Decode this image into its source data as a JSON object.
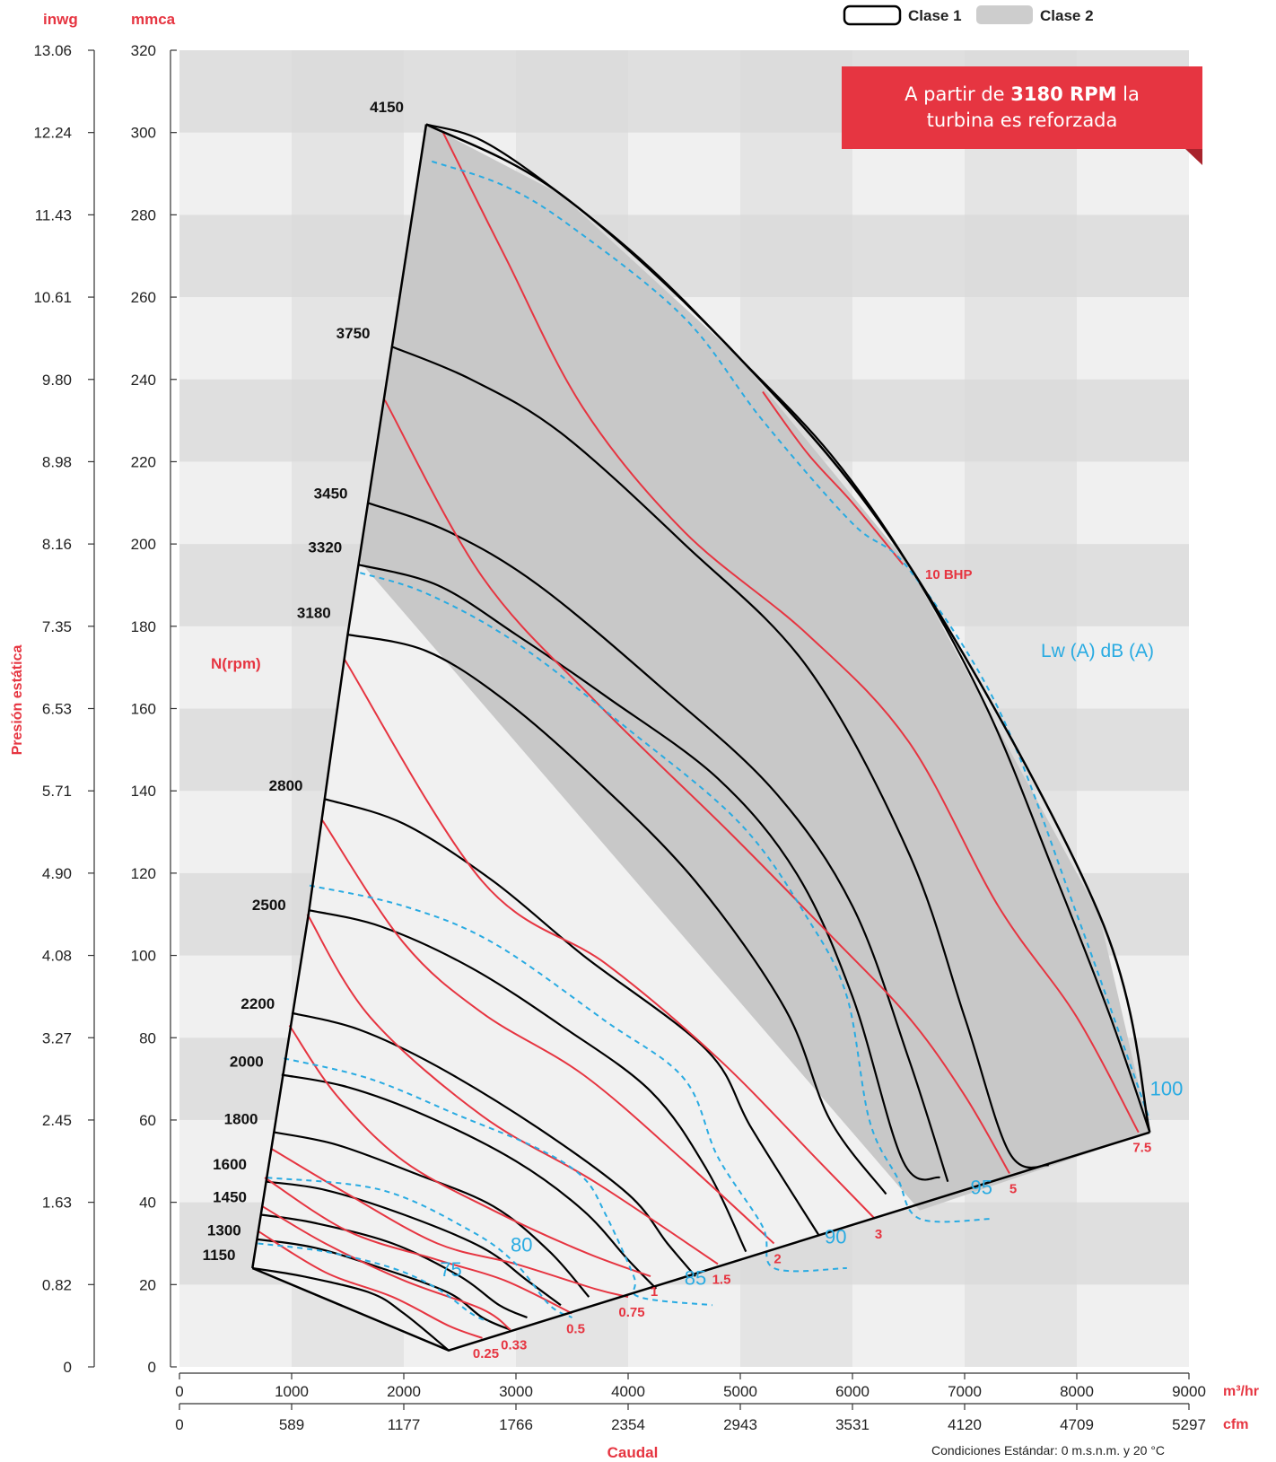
{
  "units": {
    "inwg": "inwg",
    "mmca": "mmca",
    "m3hr": "m³/hr",
    "cfm": "cfm"
  },
  "legend": {
    "clase1": "Clase 1",
    "clase2": "Clase 2"
  },
  "banner": {
    "pre": "A partir de ",
    "bold": "3180 RPM",
    "post": " la turbina es reforzada"
  },
  "labels": {
    "n_rpm": "N(rpm)",
    "lw": "Lw (A) dB (A)",
    "ten_bhp": "10 BHP",
    "ylabel": "Presión estática",
    "xlabel": "Caudal",
    "conditions": "Condiciones Estándar: 0 m.s.n.m. y 20 °C"
  },
  "colors": {
    "red": "#e63541",
    "blue": "#29abe2",
    "black": "#000000",
    "band_dark": "#dadada",
    "band_light": "#e9e9e9",
    "col_light": "#f0f0f0",
    "col_dark": "#e4e4e4",
    "clase2_fill": "#c8c8c8",
    "clase1_fill": "#f1f1f1"
  },
  "chart_data": {
    "type": "line",
    "xlim": [
      0,
      9000
    ],
    "ylim": [
      0,
      320
    ],
    "x_ticks_m3hr": [
      "0",
      "1000",
      "2000",
      "3000",
      "4000",
      "5000",
      "6000",
      "7000",
      "8000",
      "9000"
    ],
    "x_ticks_cfm": [
      "0",
      "589",
      "1177",
      "1766",
      "2354",
      "2943",
      "3531",
      "4120",
      "4709",
      "5297"
    ],
    "y_ticks_mmca": [
      "0",
      "20",
      "40",
      "60",
      "80",
      "100",
      "120",
      "140",
      "160",
      "180",
      "200",
      "220",
      "240",
      "260",
      "280",
      "300",
      "320"
    ],
    "y_ticks_inwg": [
      "0",
      "0.82",
      "1.63",
      "2.45",
      "3.27",
      "4.08",
      "4.90",
      "5.71",
      "6.53",
      "7.35",
      "8.16",
      "8.98",
      "9.80",
      "10.61",
      "11.43",
      "12.24",
      "13.06"
    ],
    "envelope": [
      [
        2200,
        302
      ],
      [
        1500,
        178
      ],
      [
        1150,
        110
      ],
      [
        650,
        24
      ],
      [
        2400,
        4
      ],
      [
        8650,
        57
      ],
      [
        8200,
        110
      ],
      [
        6500,
        195
      ],
      [
        5000,
        245
      ],
      [
        3400,
        285
      ]
    ],
    "clase2_region": [
      [
        2200,
        302
      ],
      [
        1600,
        196
      ],
      [
        6600,
        38
      ],
      [
        8650,
        57
      ],
      [
        8200,
        110
      ],
      [
        6500,
        195
      ],
      [
        5000,
        245
      ],
      [
        3400,
        285
      ]
    ],
    "rpm_curves": [
      {
        "name": "4150",
        "points": [
          [
            2200,
            302
          ],
          [
            2700,
            298
          ],
          [
            3400,
            285
          ],
          [
            4200,
            267
          ],
          [
            5000,
            245
          ],
          [
            5800,
            222
          ],
          [
            6500,
            195
          ],
          [
            7200,
            160
          ],
          [
            7800,
            120
          ],
          [
            8300,
            85
          ],
          [
            8650,
            57
          ]
        ]
      },
      {
        "name": "3750",
        "points": [
          [
            1890,
            248
          ],
          [
            2600,
            240
          ],
          [
            3400,
            227
          ],
          [
            4500,
            200
          ],
          [
            5600,
            170
          ],
          [
            6500,
            125
          ],
          [
            7000,
            85
          ],
          [
            7400,
            52
          ],
          [
            7750,
            49
          ]
        ]
      },
      {
        "name": "3450",
        "points": [
          [
            1680,
            210
          ],
          [
            2400,
            203
          ],
          [
            3200,
            190
          ],
          [
            4300,
            165
          ],
          [
            5300,
            140
          ],
          [
            6000,
            112
          ],
          [
            6500,
            75
          ],
          [
            6850,
            45
          ]
        ]
      },
      {
        "name": "3320",
        "points": [
          [
            1590,
            195
          ],
          [
            2300,
            190
          ],
          [
            3000,
            178
          ],
          [
            3800,
            163
          ],
          [
            4800,
            143
          ],
          [
            5500,
            120
          ],
          [
            6000,
            90
          ],
          [
            6450,
            50
          ],
          [
            6780,
            46
          ]
        ]
      },
      {
        "name": "3180",
        "points": [
          [
            1500,
            178
          ],
          [
            2200,
            174
          ],
          [
            2900,
            162
          ],
          [
            3700,
            143
          ],
          [
            4600,
            118
          ],
          [
            5400,
            87
          ],
          [
            5800,
            60
          ],
          [
            6300,
            42
          ]
        ]
      },
      {
        "name": "2800",
        "points": [
          [
            1300,
            138
          ],
          [
            2000,
            132
          ],
          [
            2800,
            118
          ],
          [
            3600,
            100
          ],
          [
            4700,
            77
          ],
          [
            5100,
            58
          ],
          [
            5700,
            32
          ]
        ]
      },
      {
        "name": "2500",
        "points": [
          [
            1150,
            111
          ],
          [
            1800,
            107
          ],
          [
            2600,
            97
          ],
          [
            3400,
            83
          ],
          [
            4200,
            67
          ],
          [
            4700,
            48
          ],
          [
            5050,
            28
          ]
        ]
      },
      {
        "name": "2200",
        "points": [
          [
            1000,
            86
          ],
          [
            1600,
            82
          ],
          [
            2300,
            73
          ],
          [
            3200,
            58
          ],
          [
            4000,
            42
          ],
          [
            4350,
            30
          ],
          [
            4600,
            22
          ]
        ]
      },
      {
        "name": "2000",
        "points": [
          [
            910,
            71
          ],
          [
            1500,
            68
          ],
          [
            2200,
            61
          ],
          [
            3000,
            50
          ],
          [
            3600,
            38
          ],
          [
            4000,
            26
          ],
          [
            4250,
            19
          ]
        ]
      },
      {
        "name": "1800",
        "points": [
          [
            850,
            57
          ],
          [
            1400,
            54
          ],
          [
            2100,
            47
          ],
          [
            2800,
            39
          ],
          [
            3300,
            28
          ],
          [
            3650,
            17
          ]
        ]
      },
      {
        "name": "1600",
        "points": [
          [
            780,
            45
          ],
          [
            1300,
            43
          ],
          [
            2000,
            37
          ],
          [
            2700,
            29
          ],
          [
            3100,
            21
          ],
          [
            3400,
            15
          ]
        ]
      },
      {
        "name": "1450",
        "points": [
          [
            720,
            37
          ],
          [
            1200,
            35
          ],
          [
            1900,
            30
          ],
          [
            2500,
            22
          ],
          [
            2850,
            15
          ],
          [
            3100,
            12
          ]
        ]
      },
      {
        "name": "1300",
        "points": [
          [
            690,
            31
          ],
          [
            1200,
            29
          ],
          [
            1800,
            24
          ],
          [
            2400,
            18
          ],
          [
            2700,
            12
          ],
          [
            2950,
            9
          ]
        ]
      },
      {
        "name": "1150",
        "points": [
          [
            650,
            24
          ],
          [
            1100,
            22
          ],
          [
            1700,
            18
          ],
          [
            2000,
            13
          ],
          [
            2400,
            4
          ]
        ]
      }
    ],
    "bhp_curves": [
      {
        "name": "0.25",
        "points": [
          [
            700,
            33
          ],
          [
            1300,
            23
          ],
          [
            1900,
            17
          ],
          [
            2400,
            10
          ],
          [
            2700,
            7
          ]
        ]
      },
      {
        "name": "0.33",
        "points": [
          [
            740,
            39
          ],
          [
            1300,
            30
          ],
          [
            2000,
            21
          ],
          [
            2700,
            14
          ],
          [
            2950,
            9
          ]
        ]
      },
      {
        "name": "0.5",
        "points": [
          [
            760,
            46
          ],
          [
            1500,
            33
          ],
          [
            2300,
            26
          ],
          [
            2900,
            21
          ],
          [
            3500,
            13
          ]
        ]
      },
      {
        "name": "0.75",
        "points": [
          [
            820,
            53
          ],
          [
            1500,
            42
          ],
          [
            2300,
            30
          ],
          [
            3000,
            25
          ],
          [
            3700,
            19
          ],
          [
            4000,
            17
          ]
        ]
      },
      {
        "name": "1",
        "points": [
          [
            980,
            83
          ],
          [
            1400,
            66
          ],
          [
            2000,
            50
          ],
          [
            2800,
            38
          ],
          [
            3600,
            28
          ],
          [
            4200,
            22
          ]
        ]
      },
      {
        "name": "1.5",
        "points": [
          [
            1140,
            110
          ],
          [
            1700,
            85
          ],
          [
            2700,
            61
          ],
          [
            3700,
            45
          ],
          [
            4800,
            25
          ]
        ]
      },
      {
        "name": "2",
        "points": [
          [
            1270,
            133
          ],
          [
            2000,
            103
          ],
          [
            2700,
            86
          ],
          [
            3600,
            71
          ],
          [
            4500,
            50
          ],
          [
            5300,
            30
          ]
        ]
      },
      {
        "name": "3",
        "points": [
          [
            1470,
            172
          ],
          [
            2700,
            118
          ],
          [
            3800,
            98
          ],
          [
            4800,
            75
          ],
          [
            5700,
            50
          ],
          [
            6200,
            36
          ]
        ]
      },
      {
        "name": "5",
        "points": [
          [
            1830,
            235
          ],
          [
            2700,
            192
          ],
          [
            3700,
            162
          ],
          [
            4900,
            130
          ],
          [
            5800,
            105
          ],
          [
            6500,
            85
          ],
          [
            7000,
            66
          ],
          [
            7400,
            47
          ]
        ]
      },
      {
        "name": "7.5",
        "points": [
          [
            2350,
            300
          ],
          [
            2900,
            270
          ],
          [
            3600,
            233
          ],
          [
            4500,
            203
          ],
          [
            5600,
            178
          ],
          [
            6500,
            152
          ],
          [
            7300,
            112
          ],
          [
            8000,
            85
          ],
          [
            8550,
            57
          ]
        ]
      },
      {
        "name": "10 BHP",
        "points": [
          [
            5200,
            237
          ],
          [
            5600,
            222
          ],
          [
            6000,
            210
          ],
          [
            6450,
            195
          ]
        ]
      }
    ],
    "db_curves": [
      {
        "name": "75",
        "points": [
          [
            700,
            30
          ],
          [
            1300,
            28
          ],
          [
            1900,
            24
          ],
          [
            2300,
            19
          ],
          [
            2600,
            13
          ],
          [
            2750,
            11
          ]
        ]
      },
      {
        "name": "80",
        "points": [
          [
            780,
            46
          ],
          [
            1800,
            43
          ],
          [
            2600,
            33
          ],
          [
            3000,
            25
          ],
          [
            3300,
            15
          ],
          [
            3500,
            12
          ]
        ]
      },
      {
        "name": "85",
        "points": [
          [
            930,
            75
          ],
          [
            1700,
            70
          ],
          [
            2500,
            61
          ],
          [
            3200,
            53
          ],
          [
            3600,
            46
          ],
          [
            3800,
            37
          ],
          [
            4050,
            22
          ],
          [
            4100,
            17
          ],
          [
            4750,
            15
          ]
        ]
      },
      {
        "name": "90",
        "points": [
          [
            1160,
            117
          ],
          [
            2000,
            112
          ],
          [
            2800,
            103
          ],
          [
            3800,
            84
          ],
          [
            4500,
            70
          ],
          [
            4800,
            51
          ],
          [
            5200,
            34
          ],
          [
            5300,
            24
          ],
          [
            5950,
            24
          ]
        ]
      },
      {
        "name": "95",
        "points": [
          [
            1610,
            193
          ],
          [
            2200,
            188
          ],
          [
            3000,
            176
          ],
          [
            4000,
            155
          ],
          [
            5000,
            132
          ],
          [
            5600,
            109
          ],
          [
            5950,
            90
          ],
          [
            6150,
            60
          ],
          [
            6400,
            46
          ],
          [
            6600,
            36
          ],
          [
            7250,
            36
          ]
        ]
      },
      {
        "name": "100",
        "points": [
          [
            2250,
            293
          ],
          [
            2900,
            287
          ],
          [
            3500,
            277
          ],
          [
            4500,
            255
          ],
          [
            5200,
            230
          ],
          [
            6000,
            205
          ],
          [
            6500,
            194
          ],
          [
            7300,
            160
          ],
          [
            8000,
            110
          ],
          [
            8650,
            60
          ]
        ]
      }
    ],
    "rpm_label_positions": [
      [
        4150,
        2000,
        305
      ],
      [
        3750,
        1700,
        250
      ],
      [
        3450,
        1500,
        211
      ],
      [
        3320,
        1450,
        198
      ],
      [
        3180,
        1350,
        182
      ],
      [
        2800,
        1100,
        140
      ],
      [
        2500,
        950,
        111
      ],
      [
        2200,
        850,
        87
      ],
      [
        2000,
        750,
        73
      ],
      [
        1800,
        700,
        59
      ],
      [
        1600,
        600,
        48
      ],
      [
        1450,
        600,
        40
      ],
      [
        1300,
        550,
        32
      ],
      [
        1150,
        500,
        26
      ]
    ]
  }
}
